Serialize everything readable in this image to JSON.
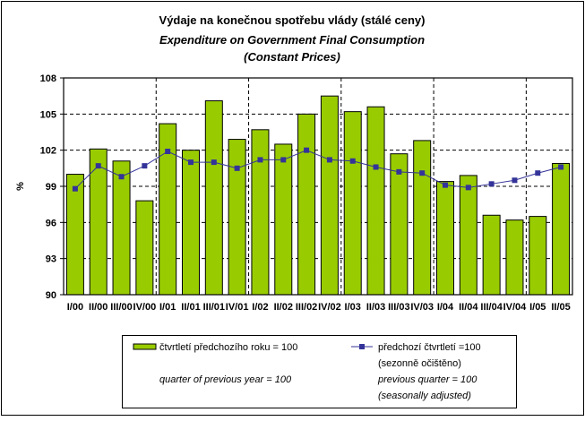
{
  "chart_data": {
    "type": "bar",
    "title": "Výdaje na konečnou spotřebu vlády (stálé ceny)",
    "subtitle_line1": "Expenditure on Government Final Consumption",
    "subtitle_line2": "(Constant Prices)",
    "ylabel": "%",
    "xlabel": "",
    "ylim": [
      90,
      108
    ],
    "yticks": [
      "90",
      "93",
      "96",
      "99",
      "102",
      "105",
      "108"
    ],
    "grid": true,
    "legend_position": "bottom",
    "categories": [
      "I/00",
      "II/00",
      "III/00",
      "IV/00",
      "I/01",
      "II/01",
      "III/01",
      "IV/01",
      "I/02",
      "II/02",
      "III/02",
      "IV/02",
      "I/03",
      "II/03",
      "III/03",
      "IV/03",
      "I/04",
      "II/04",
      "III/04",
      "IV/04",
      "I/05",
      "II/05"
    ],
    "series": [
      {
        "name": "čtvrtletí předchozího roku = 100",
        "name_en": "quarter of previous year = 100",
        "kind": "bar",
        "color": "#99cc00",
        "values": [
          100.0,
          102.1,
          101.1,
          97.8,
          104.2,
          102.0,
          106.1,
          102.9,
          103.7,
          102.5,
          105.0,
          106.5,
          105.2,
          105.6,
          101.7,
          102.8,
          99.4,
          99.9,
          96.6,
          96.2,
          96.5,
          100.9
        ]
      },
      {
        "name": "předchozí čtvrtletí =100",
        "name2": "(sezonně očištěno)",
        "name_en": "previous quarter = 100",
        "name_en2": "(seasonally adjusted)",
        "kind": "line",
        "color": "#333399",
        "values": [
          98.8,
          100.7,
          99.8,
          100.7,
          101.9,
          101.0,
          101.0,
          100.5,
          101.2,
          101.2,
          102.0,
          101.2,
          101.1,
          100.6,
          100.2,
          100.1,
          99.1,
          98.9,
          99.2,
          99.5,
          100.1,
          100.6
        ]
      }
    ]
  }
}
